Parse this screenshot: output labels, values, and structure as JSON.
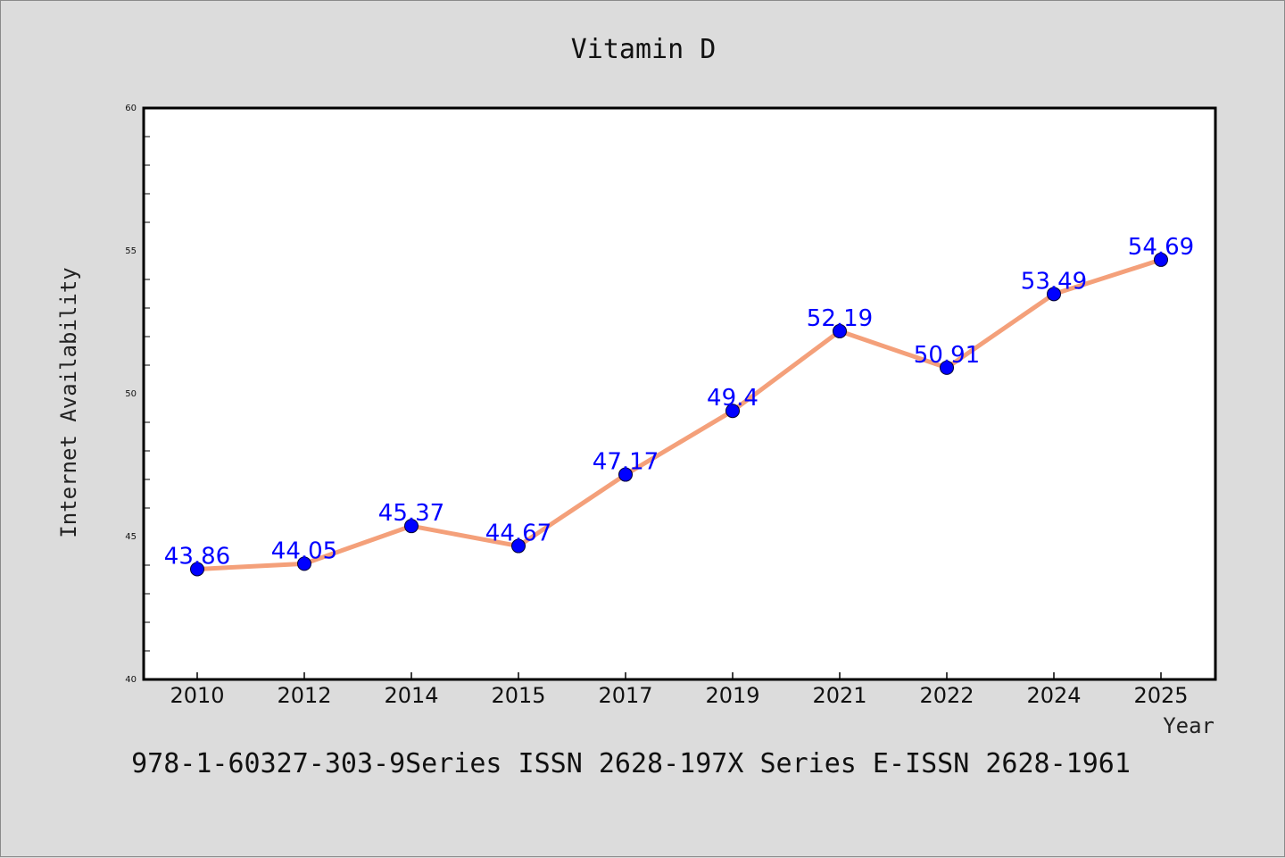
{
  "chart_data": {
    "type": "line",
    "title": "Vitamin D",
    "xlabel": "Year",
    "ylabel": "Internet Availability",
    "categories": [
      "2010",
      "2012",
      "2014",
      "2015",
      "2017",
      "2019",
      "2021",
      "2022",
      "2024",
      "2025"
    ],
    "series": [
      {
        "values": [
          43.86,
          44.05,
          45.37,
          44.67,
          47.17,
          49.4,
          52.19,
          50.91,
          53.49,
          54.69
        ],
        "labels": [
          "43.86",
          "44.05",
          "45.37",
          "44.67",
          "47.17",
          "49.4",
          "52.19",
          "50.91",
          "53.49",
          "54.69"
        ]
      }
    ],
    "ylim": [
      40,
      60
    ],
    "yticks": [
      40,
      45,
      50,
      55,
      60
    ],
    "ytick_labels": [
      "40",
      "45",
      "50",
      "55",
      "60"
    ],
    "grid": false,
    "colors": {
      "line": "#f4a07a",
      "marker": "#0000ff",
      "label": "#0000ff",
      "background": "#dcdcdc",
      "plot_area": "#ffffff"
    }
  },
  "footer": {
    "text": "978-1-60327-303-9Series ISSN 2628-197X Series E-ISSN 2628-1961"
  }
}
